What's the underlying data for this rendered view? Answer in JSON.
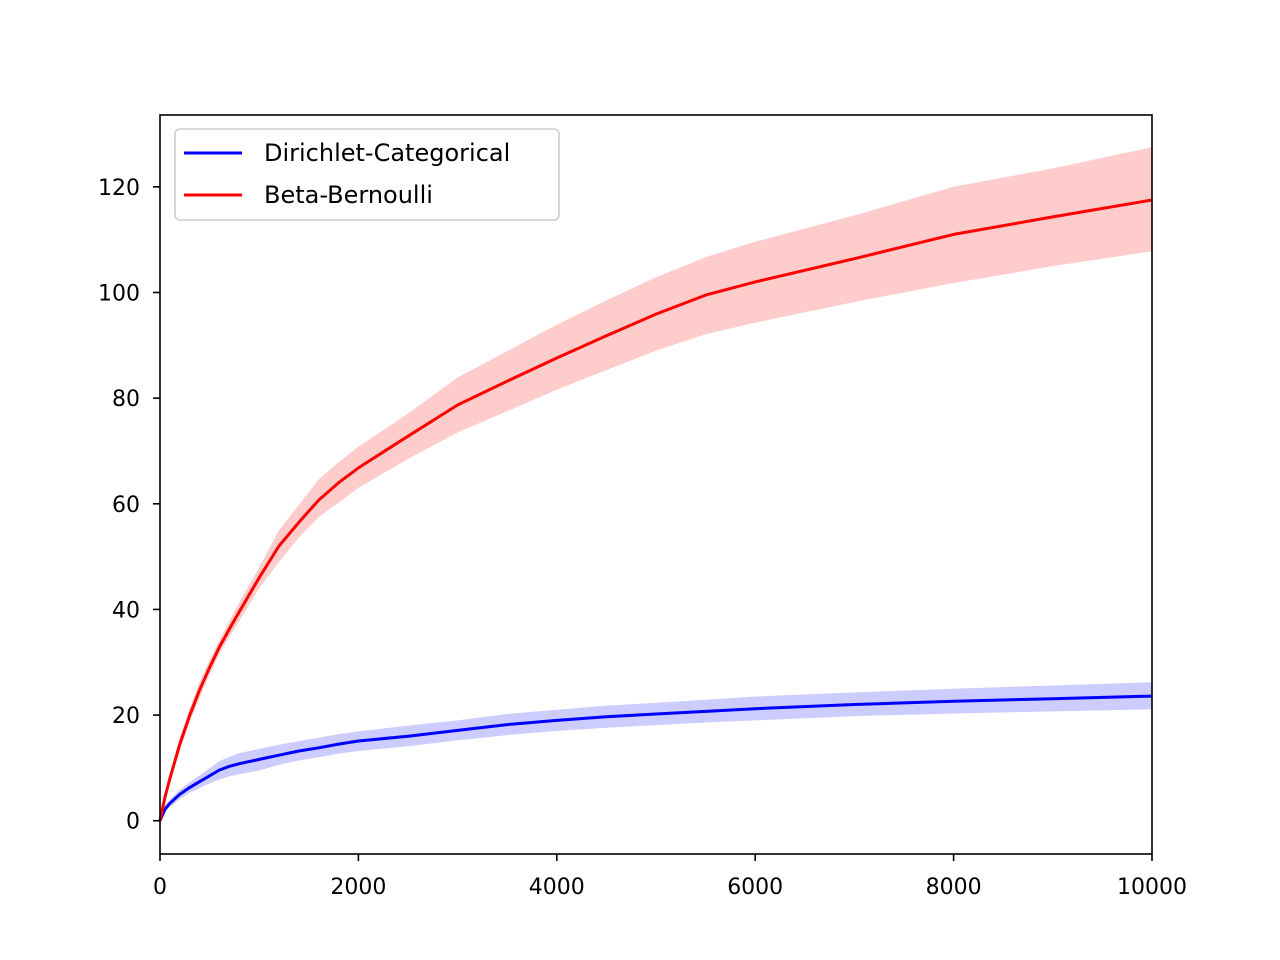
{
  "chart_data": {
    "type": "line",
    "title": "",
    "xlabel": "",
    "ylabel": "",
    "xlim": [
      0,
      10000
    ],
    "ylim": [
      -6.3,
      133.6
    ],
    "xticks": [
      0,
      2000,
      4000,
      6000,
      8000,
      10000
    ],
    "xtick_labels": [
      "0",
      "2000",
      "4000",
      "6000",
      "8000",
      "10000"
    ],
    "yticks": [
      0,
      20,
      40,
      60,
      80,
      100,
      120
    ],
    "ytick_labels": [
      "0",
      "20",
      "40",
      "60",
      "80",
      "100",
      "120"
    ],
    "grid": false,
    "legend": {
      "position": "top-left"
    },
    "series": [
      {
        "name": "Dirichlet-Categorical",
        "color": "#0000ff",
        "band_color": "#ccccff",
        "x": [
          0,
          50,
          100,
          200,
          300,
          400,
          500,
          600,
          700,
          800,
          1000,
          1200,
          1400,
          1600,
          1800,
          2000,
          2500,
          3000,
          3500,
          4000,
          4500,
          5000,
          5500,
          6000,
          7000,
          8000,
          9000,
          10000
        ],
        "y": [
          0,
          2.2,
          3.3,
          5.0,
          6.3,
          7.4,
          8.5,
          9.6,
          10.3,
          10.8,
          11.6,
          12.4,
          13.2,
          13.8,
          14.5,
          15.1,
          16.0,
          17.1,
          18.2,
          19.0,
          19.7,
          20.2,
          20.7,
          21.2,
          22.0,
          22.6,
          23.1,
          23.6
        ],
        "lower": [
          0,
          1.6,
          2.6,
          4.1,
          5.3,
          6.2,
          7.1,
          7.8,
          8.4,
          8.8,
          9.5,
          10.6,
          11.4,
          12.0,
          12.7,
          13.2,
          14.1,
          15.2,
          16.2,
          17.0,
          17.6,
          18.1,
          18.6,
          19.0,
          19.8,
          20.3,
          20.7,
          21.1
        ],
        "upper": [
          0,
          2.8,
          4.0,
          5.9,
          7.3,
          8.6,
          9.9,
          11.3,
          12.1,
          12.8,
          13.6,
          14.4,
          15.1,
          15.7,
          16.4,
          16.9,
          18.0,
          19.0,
          20.2,
          21.0,
          21.8,
          22.3,
          22.9,
          23.5,
          24.3,
          25.0,
          25.6,
          26.2
        ]
      },
      {
        "name": "Beta-Bernoulli",
        "color": "#ff0000",
        "band_color": "#ffcccc",
        "x": [
          0,
          50,
          100,
          200,
          300,
          400,
          500,
          600,
          700,
          800,
          1000,
          1200,
          1400,
          1600,
          1800,
          2000,
          2500,
          3000,
          3500,
          4000,
          4500,
          5000,
          5500,
          6000,
          7000,
          8000,
          9000,
          10000
        ],
        "y": [
          0,
          4.5,
          8.0,
          14.5,
          20.0,
          24.8,
          29.0,
          32.9,
          36.3,
          39.6,
          46.0,
          52.0,
          56.5,
          60.7,
          64.0,
          66.8,
          72.8,
          78.7,
          83.2,
          87.6,
          91.8,
          95.9,
          99.5,
          102.0,
          106.4,
          111.0,
          114.3,
          117.5
        ],
        "lower": [
          0,
          4.0,
          7.2,
          13.3,
          18.7,
          23.3,
          27.7,
          31.6,
          34.8,
          37.8,
          44.0,
          49.0,
          53.6,
          57.5,
          60.2,
          63.0,
          68.5,
          73.5,
          77.5,
          81.6,
          85.3,
          89.0,
          92.1,
          94.3,
          98.2,
          101.8,
          105.0,
          107.8
        ],
        "upper": [
          0,
          5.0,
          8.8,
          15.7,
          21.3,
          26.3,
          30.4,
          34.2,
          37.8,
          41.4,
          48.0,
          55.0,
          59.8,
          64.6,
          67.9,
          70.8,
          77.1,
          83.9,
          88.9,
          93.9,
          98.5,
          102.9,
          106.7,
          109.6,
          114.6,
          120.0,
          123.5,
          127.5
        ]
      }
    ]
  }
}
